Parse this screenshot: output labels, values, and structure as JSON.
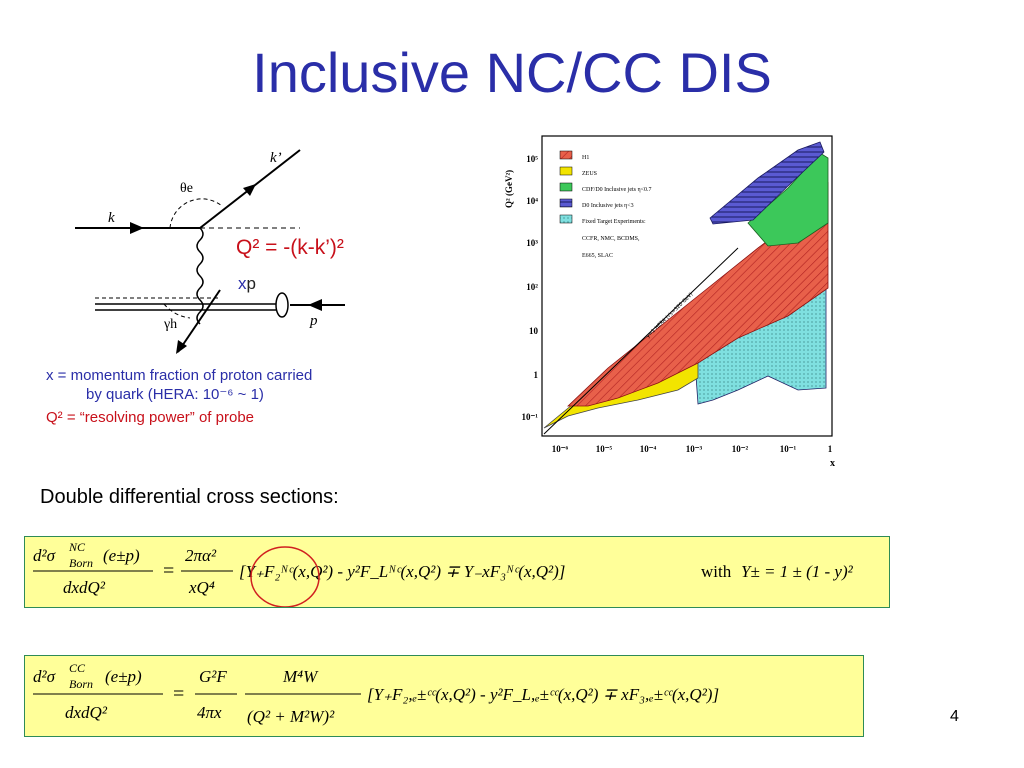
{
  "title": "Inclusive NC/CC DIS",
  "diagram": {
    "k_label": "k",
    "kprime_label": "k’",
    "p_label": "p",
    "theta_label": "θe",
    "gamma_label": "γh",
    "q2_formula": "Q² = -(k-k’)²",
    "xp_x": "x",
    "xp_p": "p"
  },
  "notes": {
    "line1": "x = momentum  fraction of  proton carried",
    "line2": "by quark (HERA: 10⁻⁶ ~ 1)",
    "line3": "Q² = “resolving power” of probe"
  },
  "plot": {
    "ylabel": "Q² (GeV²)",
    "xlabel": "x",
    "y_ticks": [
      "10⁵",
      "10⁴",
      "10³",
      "10²",
      "10",
      "1",
      "10⁻¹"
    ],
    "x_ticks": [
      "10⁻⁶",
      "10⁻⁵",
      "10⁻⁴",
      "10⁻³",
      "10⁻²",
      "10⁻¹",
      "1"
    ],
    "legend": [
      "H1",
      "ZEUS",
      "CDF/D0  Inclusive jets η<0.7",
      "D0  Inclusive jets η<3",
      "Fixed Target Experiments:",
      "CCFR, NMC, BCDMS,",
      "E665, SLAC"
    ],
    "line_label": "y=1 HERA (√s=320 GeV)",
    "colors": {
      "h1": "#e8604a",
      "zeus": "#f2e400",
      "cdf": "#3cc85a",
      "d0": "#5a5ad2",
      "fixed": "#7fe0e0"
    }
  },
  "subheading": "Double differential cross sections:",
  "eq1": {
    "lhs_num": "d²σ",
    "lhs_sup": "NC",
    "lhs_sub": "Born",
    "lhs_arg": "(e±p)",
    "lhs_den": "dxdQ²",
    "pref_num": "2πα²",
    "pref_den": "xQ⁴",
    "body": "[Y₊F₂ᴺᶜ(x,Q²) - y²F_Lᴺᶜ(x,Q²) ∓ Y₋xF₃ᴺᶜ(x,Q²)]",
    "with": "with",
    "def": "Y± = 1 ± (1 - y)²"
  },
  "eq2": {
    "lhs_num": "d²σ",
    "lhs_sup": "CC",
    "lhs_sub": "Born",
    "lhs_arg": "(e±p)",
    "lhs_den": "dxdQ²",
    "pref_num": "G²F",
    "pref_den": "4πx",
    "prop_num": "M⁴W",
    "prop_den": "(Q² + M²W)²",
    "body": "[Y₊F₂,ₑ±ᶜᶜ(x,Q²) - y²F_L,ₑ±ᶜᶜ(x,Q²) ∓ xF₃,ₑ±ᶜᶜ(x,Q²)]"
  },
  "page_number": "4"
}
